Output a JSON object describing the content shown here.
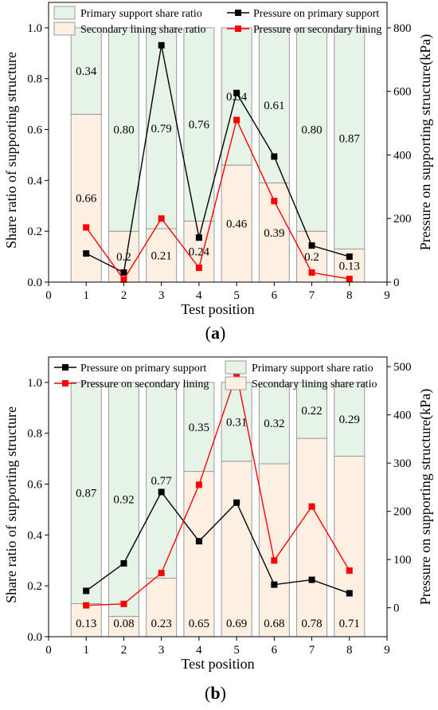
{
  "colors": {
    "primary_fill": "#e6f4e8",
    "secondary_fill": "#fdefe2",
    "bar_edge": "#9a9a9a",
    "primary_line": "#000000",
    "secondary_line": "#ff0000"
  },
  "chart_data": [
    {
      "type": "bar",
      "panel_label": "(a)",
      "panel_letter": "a",
      "xlabel": "Test position",
      "ylabel": "Share ratio of supporting structure",
      "ylabel_right": "Pressure on supporting structure(kPa)",
      "xlim": [
        0,
        9
      ],
      "ylim": [
        0,
        1.1
      ],
      "y2lim": [
        0,
        880
      ],
      "xticks": [
        0,
        1,
        2,
        3,
        4,
        5,
        6,
        7,
        8,
        9
      ],
      "yticks": [
        0.0,
        0.2,
        0.4,
        0.6,
        0.8,
        1.0
      ],
      "y2ticks": [
        0,
        200,
        400,
        600,
        800
      ],
      "categories": [
        1,
        2,
        3,
        4,
        5,
        6,
        7,
        8
      ],
      "legend": [
        {
          "key": "primary_ratio",
          "label": "Primary support share ratio"
        },
        {
          "key": "primary_pressure",
          "label": "Pressure on primary support"
        },
        {
          "key": "secondary_ratio",
          "label": "Secondary lining share ratio"
        },
        {
          "key": "secondary_pressure",
          "label": "Pressure on secondary lining"
        }
      ],
      "legend_placement": "top",
      "series": [
        {
          "name": "Primary support share ratio",
          "key": "primary_ratio",
          "type": "bar",
          "axis": "left",
          "values": [
            0.34,
            0.8,
            0.79,
            0.76,
            0.54,
            0.61,
            0.8,
            0.87
          ],
          "labels": [
            "0.34",
            "0.80",
            "0.79",
            "0.76",
            "0.54",
            "0.61",
            "0.80",
            "0.87"
          ]
        },
        {
          "name": "Secondary lining share ratio",
          "key": "secondary_ratio",
          "type": "bar",
          "axis": "left",
          "values": [
            0.66,
            0.2,
            0.21,
            0.24,
            0.46,
            0.39,
            0.2,
            0.13
          ],
          "labels": [
            "0.66",
            "0.2",
            "0.21",
            "0.24",
            "0.46",
            "0.39",
            "0.2",
            "0.13"
          ]
        },
        {
          "name": "Pressure on primary support",
          "key": "primary_pressure",
          "type": "line",
          "axis": "right",
          "values": [
            90,
            30,
            745,
            140,
            595,
            395,
            115,
            80
          ]
        },
        {
          "name": "Pressure on secondary lining",
          "key": "secondary_pressure",
          "type": "line",
          "axis": "right",
          "values": [
            172,
            8,
            200,
            45,
            510,
            255,
            30,
            10
          ]
        }
      ]
    },
    {
      "type": "bar",
      "panel_label": "(b)",
      "panel_letter": "b",
      "xlabel": "Test position",
      "ylabel": "Share ratio of supporting structure",
      "ylabel_right": "Pressure on supporting structure(kPa)",
      "xlim": [
        0,
        9
      ],
      "ylim": [
        0,
        1.1
      ],
      "y2lim": [
        -60,
        520
      ],
      "xticks": [
        0,
        1,
        2,
        3,
        4,
        5,
        6,
        7,
        8,
        9
      ],
      "yticks": [
        0.0,
        0.2,
        0.4,
        0.6,
        0.8,
        1.0
      ],
      "y2ticks": [
        0,
        100,
        200,
        300,
        400,
        500
      ],
      "categories": [
        1,
        2,
        3,
        4,
        5,
        6,
        7,
        8
      ],
      "legend": [
        {
          "key": "primary_pressure",
          "label": "Pressure on primary support"
        },
        {
          "key": "primary_ratio",
          "label": "Primary support share ratio"
        },
        {
          "key": "secondary_pressure",
          "label": "Pressure on secondary lining"
        },
        {
          "key": "secondary_ratio",
          "label": "Secondary lining share ratio"
        }
      ],
      "legend_placement": "top",
      "series": [
        {
          "name": "Primary support share ratio",
          "key": "primary_ratio",
          "type": "bar",
          "axis": "left",
          "values": [
            0.87,
            0.92,
            0.77,
            0.35,
            0.31,
            0.32,
            0.22,
            0.29
          ],
          "labels": [
            "0.87",
            "0.92",
            "0.77",
            "0.35",
            "0.31",
            "0.32",
            "0.22",
            "0.29"
          ]
        },
        {
          "name": "Secondary lining share ratio",
          "key": "secondary_ratio",
          "type": "bar",
          "axis": "left",
          "values": [
            0.13,
            0.08,
            0.23,
            0.65,
            0.69,
            0.68,
            0.78,
            0.71
          ],
          "labels": [
            "0.13",
            "0.08",
            "0.23",
            "0.65",
            "0.69",
            "0.68",
            "0.78",
            "0.71"
          ]
        },
        {
          "name": "Pressure on primary support",
          "key": "primary_pressure",
          "type": "line",
          "axis": "right",
          "values": [
            35,
            92,
            240,
            138,
            218,
            48,
            58,
            30
          ]
        },
        {
          "name": "Pressure on secondary lining",
          "key": "secondary_pressure",
          "type": "line",
          "axis": "right",
          "values": [
            5,
            8,
            72,
            255,
            485,
            98,
            210,
            77
          ]
        }
      ]
    }
  ]
}
